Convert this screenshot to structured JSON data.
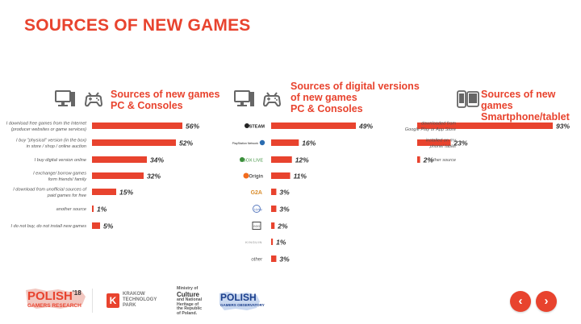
{
  "page": {
    "title": "SOURCES OF NEW GAMES"
  },
  "colors": {
    "accent": "#e8432e",
    "text": "#555555"
  },
  "chart_data": [
    {
      "type": "bar",
      "orientation": "horizontal",
      "title_lines": [
        "Sources of new games",
        "PC & Consoles"
      ],
      "icons": [
        "monitor-icon",
        "gamepad-icon"
      ],
      "categories": [
        [
          "I download free games from the Internet",
          "(producer websites  or game services)"
        ],
        [
          "I buy \"physical\" version (in the box)",
          "in store / shop / online auction"
        ],
        [
          "I buy digital version online"
        ],
        [
          "I exchange/ borrow games",
          "form friends/ family"
        ],
        [
          "I download from  unofficial sources of",
          "paid games for free"
        ],
        [
          "another source"
        ],
        [
          "I do not buy, do not install new games"
        ]
      ],
      "values": [
        56,
        52,
        34,
        32,
        15,
        1,
        5
      ],
      "value_labels": [
        "56%",
        "52%",
        "34%",
        "32%",
        "15%",
        "1%",
        "5%"
      ],
      "unit": "%"
    },
    {
      "type": "bar",
      "orientation": "horizontal",
      "title_lines": [
        "Sources of digital versions",
        "of new games",
        "PC & Consoles"
      ],
      "icons": [
        "monitor-icon",
        "gamepad-icon"
      ],
      "categories": [
        "STEAM",
        "PlayStation Network",
        "XBOX LIVE",
        "Origin",
        "G2A",
        "Uplay",
        "GOG",
        "KINGUIN",
        "other"
      ],
      "category_icons": [
        "steam-logo",
        "playstation-network-logo",
        "xbox-live-logo",
        "origin-logo",
        "g2a-logo",
        "uplay-logo",
        "gog-logo",
        "kinguin-logo",
        ""
      ],
      "values": [
        49,
        16,
        12,
        11,
        3,
        3,
        2,
        1,
        3
      ],
      "value_labels": [
        "49%",
        "16%",
        "12%",
        "11%",
        "3%",
        "3%",
        "2%",
        "1%",
        "3%"
      ],
      "unit": "%"
    },
    {
      "type": "bar",
      "orientation": "horizontal",
      "title_lines": [
        "Sources of new games",
        "Smartphone/tablet"
      ],
      "icons": [
        "smartphone-icon",
        "tablet-icon"
      ],
      "categories": [
        [
          "downloaded from",
          "Google Play or App Store"
        ],
        [
          "installed on my",
          "phone/ tablet"
        ],
        [
          "other source"
        ]
      ],
      "values": [
        93,
        23,
        2
      ],
      "value_labels": [
        "93%",
        "23%",
        "2%"
      ],
      "unit": "%"
    }
  ],
  "footer": {
    "polish_gamers_research": {
      "line1": "POLISH",
      "sup": "'18",
      "line2": "GAMERS RESEARCH"
    },
    "krakow_technology_park": [
      "KRAKOW",
      "TECHNOLOGY",
      "PARK"
    ],
    "ministry": [
      "Ministry of",
      "Culture",
      "and National",
      "Heritage of",
      "the Republic",
      "of Poland."
    ],
    "polish_gamers_observatory": {
      "line1": "POLISH",
      "line2": "GAMERS OBSERVATORY"
    }
  },
  "nav": {
    "prev": "‹",
    "next": "›"
  }
}
